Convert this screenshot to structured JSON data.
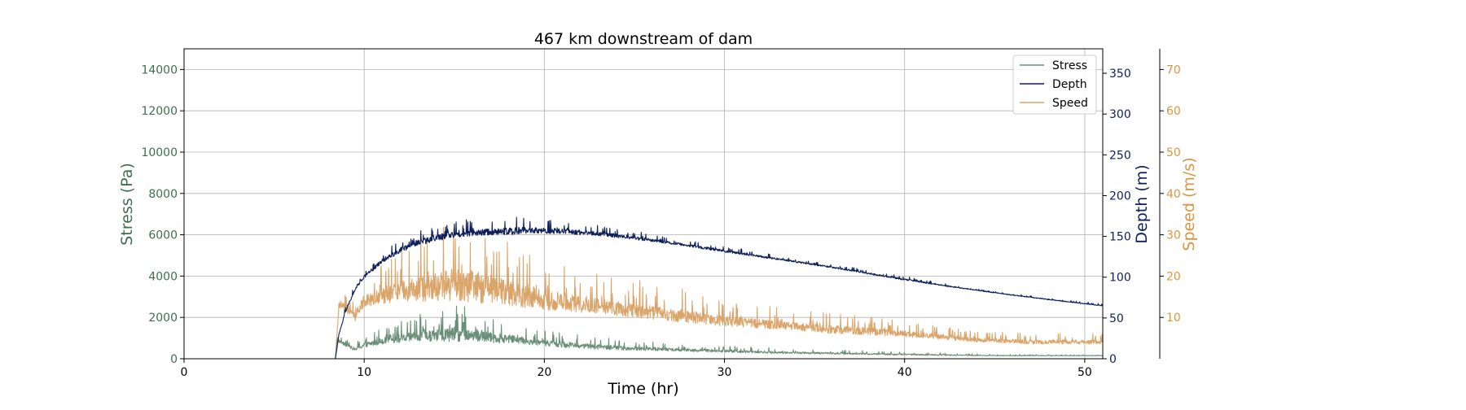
{
  "chart_data": {
    "type": "line",
    "title": "467 km downstream of dam",
    "xlabel": "Time (hr)",
    "xlim": [
      0,
      51
    ],
    "xticks": [
      0,
      10,
      20,
      30,
      40,
      50
    ],
    "grid": true,
    "legend_position": "top-right",
    "axes": {
      "stress": {
        "label": "Stress (Pa)",
        "ylim": [
          0,
          15000
        ],
        "ticks": [
          0,
          2000,
          4000,
          6000,
          8000,
          10000,
          12000,
          14000
        ],
        "color": "#3e6e4e"
      },
      "depth": {
        "label": "Depth (m)",
        "ylim": [
          0,
          380
        ],
        "ticks": [
          0,
          50,
          100,
          150,
          200,
          250,
          300,
          350
        ],
        "color": "#0d1f5a"
      },
      "speed": {
        "label": "Speed (m/s)",
        "ylim": [
          0,
          75
        ],
        "ticks": [
          10,
          20,
          30,
          40,
          50,
          60,
          70
        ],
        "color": "#d9953f"
      }
    },
    "series": [
      {
        "name": "Stress",
        "axis": "stress",
        "color": "#6a8f78",
        "x": [
          0,
          8.4,
          8.5,
          9,
          9.5,
          10,
          11,
          12,
          13,
          14,
          15,
          16,
          17,
          18,
          20,
          22,
          25,
          28,
          30,
          33,
          36,
          40,
          45,
          50,
          51
        ],
        "y": [
          0,
          0,
          900,
          650,
          450,
          650,
          850,
          950,
          1050,
          1100,
          1150,
          1100,
          1000,
          950,
          750,
          600,
          480,
          420,
          360,
          300,
          260,
          200,
          150,
          150,
          150
        ],
        "noise": [
          0,
          0,
          150,
          150,
          150,
          250,
          300,
          400,
          500,
          600,
          700,
          600,
          500,
          400,
          300,
          250,
          180,
          150,
          120,
          100,
          80,
          60,
          30,
          20,
          20
        ]
      },
      {
        "name": "Depth",
        "axis": "depth",
        "color": "#0d1f5a",
        "x": [
          0,
          8.4,
          8.6,
          9,
          9.5,
          10,
          11,
          12,
          13,
          14,
          15,
          17,
          19,
          21,
          23,
          25,
          27,
          30,
          33,
          36,
          40,
          43,
          46,
          49,
          51
        ],
        "y": [
          0,
          0,
          30,
          60,
          85,
          100,
          120,
          133,
          142,
          148,
          152,
          155,
          157,
          156,
          153,
          148,
          142,
          132,
          122,
          112,
          97,
          87,
          78,
          70,
          65
        ],
        "noise": [
          0,
          0,
          2,
          3,
          3,
          4,
          5,
          6,
          7,
          8,
          8,
          8,
          8,
          6,
          5,
          4,
          3,
          3,
          2,
          2,
          2,
          1,
          1,
          1,
          1
        ]
      },
      {
        "name": "Speed",
        "axis": "speed",
        "color": "#dba56a",
        "x": [
          0,
          8.4,
          8.6,
          9,
          9.5,
          10,
          11,
          12,
          13,
          14,
          15,
          16,
          17,
          18,
          19,
          20,
          22,
          25,
          28,
          30,
          33,
          36,
          40,
          44,
          47,
          51
        ],
        "y": [
          0,
          0,
          13,
          12,
          10,
          14,
          15,
          16,
          16.5,
          17,
          17.5,
          17,
          16.5,
          15.5,
          15,
          14,
          13,
          11.5,
          10,
          9,
          8,
          7,
          6,
          4.5,
          4,
          4
        ],
        "noise": [
          0,
          0,
          2,
          2,
          2,
          3,
          4,
          5,
          6,
          7,
          8,
          8,
          7,
          6,
          6,
          5,
          4,
          3.5,
          3,
          2.5,
          2,
          2,
          1.5,
          1,
          1,
          1
        ]
      }
    ]
  }
}
